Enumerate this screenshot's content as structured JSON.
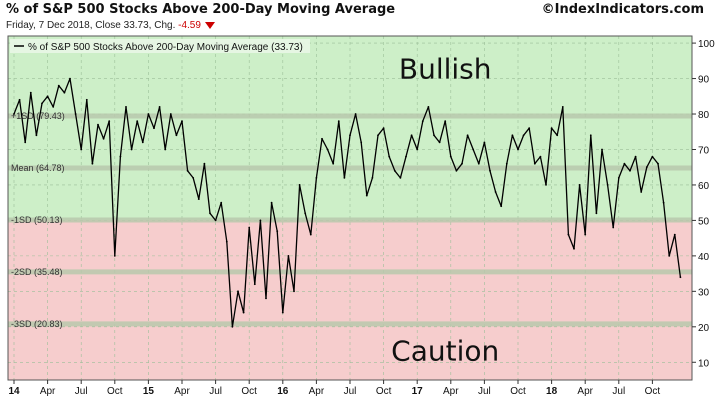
{
  "header": {
    "title": "% of S&P 500 Stocks Above 200-Day Moving Average",
    "credit": "©IndexIndicators.com",
    "subtitle_main": "Friday, 7 Dec 2018, Close 33.73, Chg.",
    "subtitle_change": "-4.59"
  },
  "legend": {
    "label": "% of S&P 500 Stocks Above 200-Day Moving Average (33.73)"
  },
  "zones": {
    "upper": "Bullish",
    "lower": "Caution"
  },
  "colors": {
    "bullish_zone": "#cdefc8",
    "caution_zone": "#f6cdcd",
    "line": "#000000",
    "sd_band": "#b9c9ad",
    "change_down": "#cc0000"
  },
  "chart_data": {
    "type": "line",
    "title": "% of S&P 500 Stocks Above 200-Day Moving Average",
    "xlabel": "",
    "ylabel": "",
    "ylim": [
      5,
      102
    ],
    "xlim": [
      0,
      60
    ],
    "yticks": [
      10,
      20,
      30,
      40,
      50,
      60,
      70,
      80,
      90,
      100
    ],
    "x_tick_labels": [
      {
        "x": 0,
        "label": "14",
        "year": true
      },
      {
        "x": 3,
        "label": "Apr"
      },
      {
        "x": 6,
        "label": "Jul"
      },
      {
        "x": 9,
        "label": "Oct"
      },
      {
        "x": 12,
        "label": "15",
        "year": true
      },
      {
        "x": 15,
        "label": "Apr"
      },
      {
        "x": 18,
        "label": "Jul"
      },
      {
        "x": 21,
        "label": "Oct"
      },
      {
        "x": 24,
        "label": "16",
        "year": true
      },
      {
        "x": 27,
        "label": "Apr"
      },
      {
        "x": 30,
        "label": "Jul"
      },
      {
        "x": 33,
        "label": "Oct"
      },
      {
        "x": 36,
        "label": "17",
        "year": true
      },
      {
        "x": 39,
        "label": "Apr"
      },
      {
        "x": 42,
        "label": "Jul"
      },
      {
        "x": 45,
        "label": "Oct"
      },
      {
        "x": 48,
        "label": "18",
        "year": true
      },
      {
        "x": 51,
        "label": "Apr"
      },
      {
        "x": 54,
        "label": "Jul"
      },
      {
        "x": 57,
        "label": "Oct"
      }
    ],
    "reference_lines": [
      {
        "label": "+1SD (79.43)",
        "value": 79.43
      },
      {
        "label": "Mean (64.78)",
        "value": 64.78
      },
      {
        "label": "-1SD (50.13)",
        "value": 50.13
      },
      {
        "label": "-2SD (35.48)",
        "value": 35.48
      },
      {
        "label": "-3SD (20.83)",
        "value": 20.83
      }
    ],
    "zones": [
      {
        "name": "Bullish",
        "from": 50.13,
        "to": 102
      },
      {
        "name": "Caution",
        "from": 5,
        "to": 50.13
      }
    ],
    "series": [
      {
        "name": "% of S&P 500 Stocks Above 200-Day Moving Average",
        "x": [
          0,
          0.5,
          1,
          1.5,
          2,
          2.5,
          3,
          3.5,
          4,
          4.5,
          5,
          5.5,
          6,
          6.5,
          7,
          7.5,
          8,
          8.5,
          9,
          9.5,
          10,
          10.5,
          11,
          11.5,
          12,
          12.5,
          13,
          13.5,
          14,
          14.5,
          15,
          15.5,
          16,
          16.5,
          17,
          17.5,
          18,
          18.5,
          19,
          19.5,
          20,
          20.5,
          21,
          21.5,
          22,
          22.5,
          23,
          23.5,
          24,
          24.5,
          25,
          25.5,
          26,
          26.5,
          27,
          27.5,
          28,
          28.5,
          29,
          29.5,
          30,
          30.5,
          31,
          31.5,
          32,
          32.5,
          33,
          33.5,
          34,
          34.5,
          35,
          35.5,
          36,
          36.5,
          37,
          37.5,
          38,
          38.5,
          39,
          39.5,
          40,
          40.5,
          41,
          41.5,
          42,
          42.5,
          43,
          43.5,
          44,
          44.5,
          45,
          45.5,
          46,
          46.5,
          47,
          47.5,
          48,
          48.5,
          49,
          49.5,
          50,
          50.5,
          51,
          51.5,
          52,
          52.5,
          53,
          53.5,
          54,
          54.5,
          55,
          55.5,
          56,
          56.5,
          57,
          57.5,
          58,
          58.5,
          59,
          59.5
        ],
        "values": [
          80,
          84,
          72,
          86,
          74,
          83,
          85,
          82,
          88,
          86,
          90,
          80,
          70,
          84,
          66,
          77,
          73,
          78,
          40,
          68,
          82,
          70,
          78,
          72,
          80,
          76,
          82,
          70,
          80,
          74,
          78,
          64,
          62,
          56,
          66,
          52,
          50,
          55,
          44,
          20,
          30,
          24,
          48,
          32,
          50,
          28,
          55,
          47,
          24,
          40,
          30,
          60,
          52,
          46,
          62,
          73,
          70,
          66,
          78,
          62,
          74,
          80,
          72,
          57,
          62,
          74,
          76,
          68,
          64,
          62,
          68,
          74,
          70,
          78,
          82,
          74,
          72,
          78,
          68,
          64,
          66,
          74,
          70,
          66,
          72,
          64,
          58,
          54,
          66,
          74,
          70,
          74,
          76,
          66,
          68,
          60,
          76,
          74,
          82,
          46,
          42,
          60,
          46,
          74,
          52,
          70,
          60,
          48,
          62,
          66,
          64,
          68,
          58,
          65,
          68,
          66,
          55,
          40,
          46,
          34
        ]
      }
    ]
  }
}
